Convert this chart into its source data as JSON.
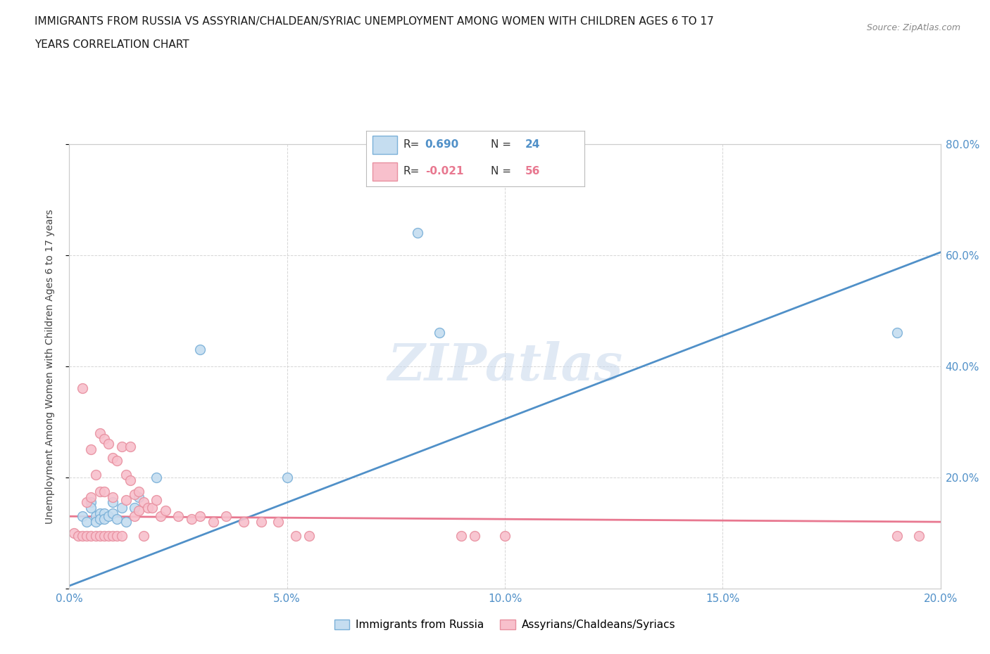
{
  "title_line1": "IMMIGRANTS FROM RUSSIA VS ASSYRIAN/CHALDEAN/SYRIAC UNEMPLOYMENT AMONG WOMEN WITH CHILDREN AGES 6 TO 17",
  "title_line2": "YEARS CORRELATION CHART",
  "source": "Source: ZipAtlas.com",
  "ylabel": "Unemployment Among Women with Children Ages 6 to 17 years",
  "xlim": [
    0.0,
    0.2
  ],
  "ylim": [
    0.0,
    0.8
  ],
  "xticks": [
    0.0,
    0.05,
    0.1,
    0.15,
    0.2
  ],
  "yticks": [
    0.0,
    0.2,
    0.4,
    0.6,
    0.8
  ],
  "xtick_labels": [
    "0.0%",
    "5.0%",
    "10.0%",
    "15.0%",
    "20.0%"
  ],
  "ytick_labels": [
    "",
    "20.0%",
    "40.0%",
    "60.0%",
    "80.0%"
  ],
  "watermark_text": "ZIPatlas",
  "color_russia": "#c5ddf0",
  "color_russia_edge": "#7ab0d8",
  "color_assyrian": "#f8c0cc",
  "color_assyrian_edge": "#e890a0",
  "color_russia_line": "#5090c8",
  "color_assyrian_line": "#e87890",
  "russia_x": [
    0.003,
    0.004,
    0.005,
    0.005,
    0.006,
    0.006,
    0.007,
    0.007,
    0.008,
    0.008,
    0.009,
    0.01,
    0.01,
    0.011,
    0.012,
    0.013,
    0.015,
    0.016,
    0.02,
    0.03,
    0.05,
    0.08,
    0.085,
    0.19
  ],
  "russia_y": [
    0.13,
    0.12,
    0.155,
    0.145,
    0.13,
    0.12,
    0.135,
    0.125,
    0.135,
    0.125,
    0.13,
    0.155,
    0.135,
    0.125,
    0.145,
    0.12,
    0.145,
    0.165,
    0.2,
    0.43,
    0.2,
    0.64,
    0.46,
    0.46
  ],
  "assyrian_x": [
    0.001,
    0.002,
    0.003,
    0.003,
    0.004,
    0.004,
    0.005,
    0.005,
    0.005,
    0.006,
    0.006,
    0.007,
    0.007,
    0.007,
    0.008,
    0.008,
    0.008,
    0.009,
    0.009,
    0.01,
    0.01,
    0.01,
    0.011,
    0.011,
    0.012,
    0.012,
    0.013,
    0.013,
    0.014,
    0.014,
    0.015,
    0.015,
    0.016,
    0.016,
    0.017,
    0.017,
    0.018,
    0.019,
    0.02,
    0.021,
    0.022,
    0.025,
    0.028,
    0.03,
    0.033,
    0.036,
    0.04,
    0.044,
    0.048,
    0.052,
    0.055,
    0.09,
    0.093,
    0.1,
    0.19,
    0.195
  ],
  "assyrian_y": [
    0.1,
    0.095,
    0.36,
    0.095,
    0.155,
    0.095,
    0.25,
    0.165,
    0.095,
    0.205,
    0.095,
    0.28,
    0.175,
    0.095,
    0.27,
    0.175,
    0.095,
    0.26,
    0.095,
    0.235,
    0.165,
    0.095,
    0.23,
    0.095,
    0.255,
    0.095,
    0.205,
    0.16,
    0.255,
    0.195,
    0.17,
    0.13,
    0.175,
    0.14,
    0.155,
    0.095,
    0.145,
    0.145,
    0.16,
    0.13,
    0.14,
    0.13,
    0.125,
    0.13,
    0.12,
    0.13,
    0.12,
    0.12,
    0.12,
    0.095,
    0.095,
    0.095,
    0.095,
    0.095,
    0.095,
    0.095
  ],
  "russia_trend_x": [
    0.0,
    0.2
  ],
  "russia_trend_y": [
    0.005,
    0.605
  ],
  "assyrian_trend_x": [
    0.0,
    0.2
  ],
  "assyrian_trend_y": [
    0.13,
    0.12
  ],
  "background_color": "#ffffff",
  "grid_color": "#cccccc",
  "tick_color": "#5090c8"
}
